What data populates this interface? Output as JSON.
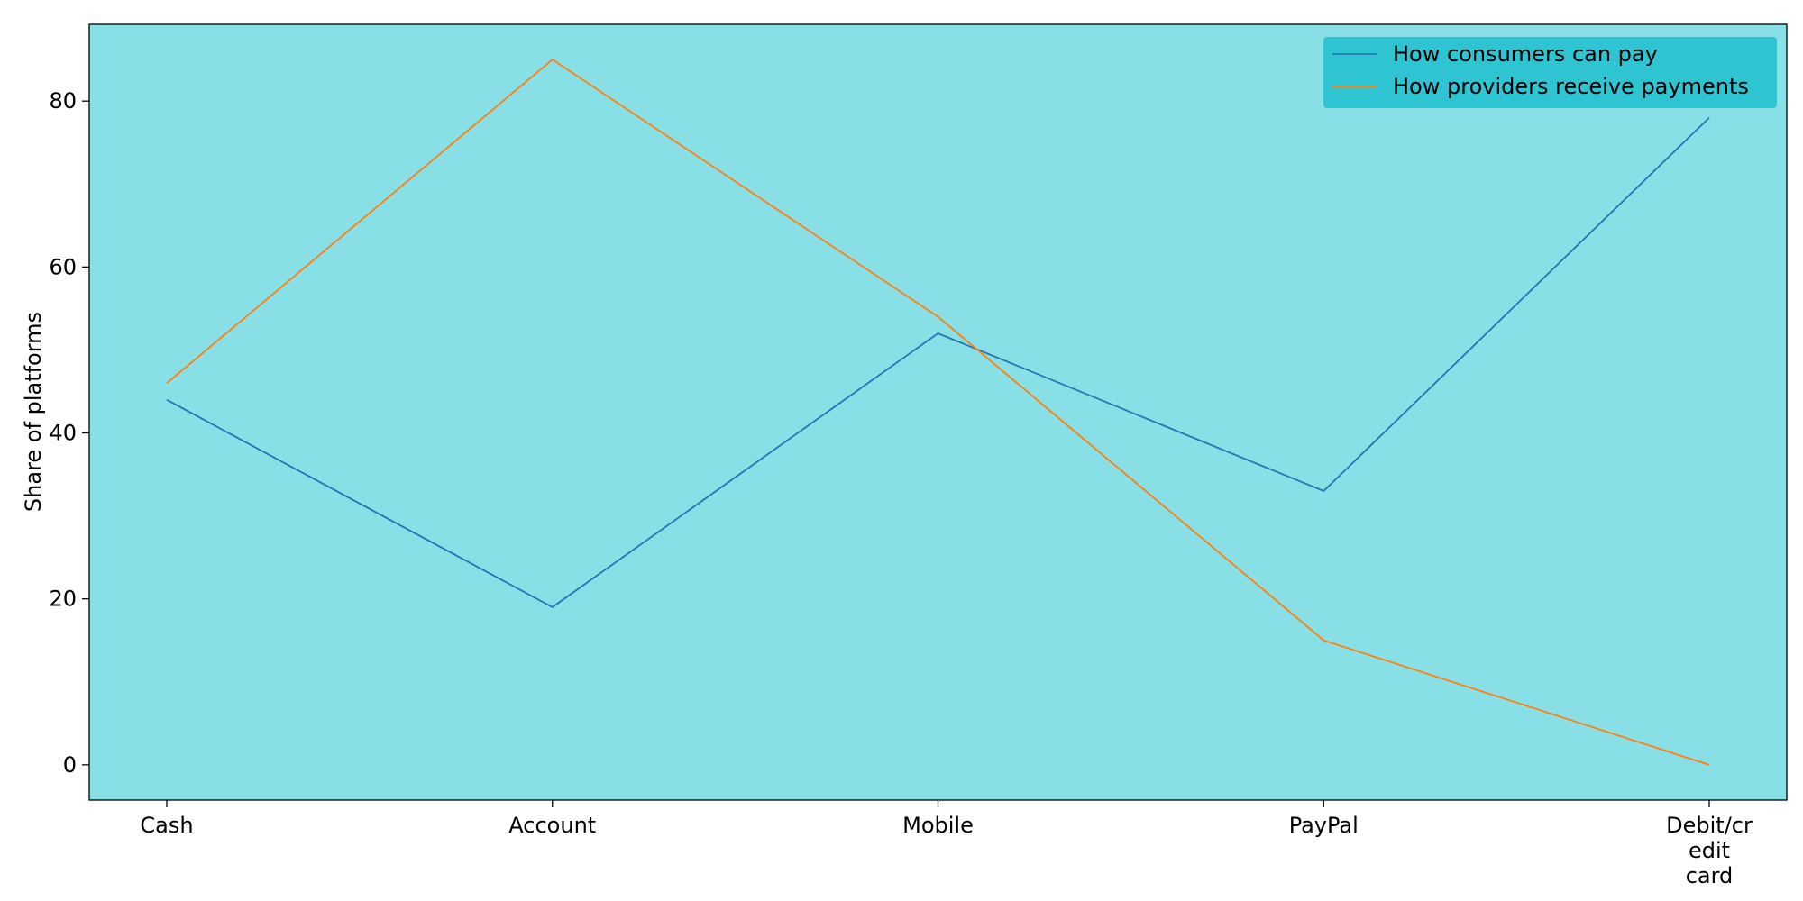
{
  "chart_data": {
    "type": "line",
    "categories": [
      "Cash",
      "Account",
      "Mobile",
      "PayPal",
      "Debit/credit card"
    ],
    "category_tick_lines": [
      [
        "Cash"
      ],
      [
        "Account"
      ],
      [
        "Mobile"
      ],
      [
        "PayPal"
      ],
      [
        "Debit/cr",
        "edit",
        "card"
      ]
    ],
    "series": [
      {
        "name": "How consumers can pay",
        "values": [
          44,
          19,
          52,
          33,
          78
        ],
        "color": "#1f77b4"
      },
      {
        "name": "How providers receive payments",
        "values": [
          46,
          85,
          54,
          15,
          0
        ],
        "color": "#ff7f0e"
      }
    ],
    "title": "",
    "xlabel": "",
    "ylabel": "Share of platforms",
    "ylim": [
      -4.25,
      89.25
    ],
    "yticks": [
      0,
      20,
      40,
      60,
      80
    ],
    "grid": false,
    "legend_position": "upper right",
    "plot_background": "#89dfe6",
    "legend_background": "#2ec4d2"
  }
}
